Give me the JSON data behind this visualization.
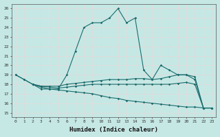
{
  "xlabel": "Humidex (Indice chaleur)",
  "ylabel": "",
  "xlim": [
    -0.5,
    23.5
  ],
  "ylim": [
    14.5,
    26.5
  ],
  "yticks": [
    15,
    16,
    17,
    18,
    19,
    20,
    21,
    22,
    23,
    24,
    25,
    26
  ],
  "xticks": [
    0,
    1,
    2,
    3,
    4,
    5,
    6,
    7,
    8,
    9,
    10,
    11,
    12,
    13,
    14,
    15,
    16,
    17,
    18,
    19,
    20,
    21,
    22,
    23
  ],
  "background_color": "#c5e8e5",
  "grid_color": "#e8d8d8",
  "line_color": "#1a6b6b",
  "lines": [
    {
      "x": [
        0,
        1,
        2,
        3,
        4,
        5,
        6,
        7,
        8,
        9,
        10,
        11,
        12,
        13,
        14,
        15,
        16,
        17,
        18,
        19,
        20,
        21,
        22,
        23
      ],
      "y": [
        19,
        18.5,
        18,
        17.5,
        17.5,
        17.5,
        19,
        21.5,
        24,
        24.5,
        24.5,
        25,
        26,
        24.5,
        25,
        19.5,
        18.5,
        20,
        19.5,
        19,
        19,
        18.5,
        15.5,
        15.5
      ]
    },
    {
      "x": [
        0,
        1,
        2,
        3,
        4,
        5,
        6,
        7,
        8,
        9,
        10,
        11,
        12,
        13,
        14,
        15,
        16,
        17,
        18,
        19,
        20,
        21,
        22,
        23
      ],
      "y": [
        19,
        18.5,
        18,
        17.8,
        17.8,
        17.8,
        18.0,
        18.1,
        18.2,
        18.3,
        18.4,
        18.5,
        18.5,
        18.5,
        18.6,
        18.6,
        18.5,
        18.6,
        18.8,
        19.0,
        19.0,
        18.8,
        15.5,
        15.5
      ]
    },
    {
      "x": [
        2,
        3,
        4,
        5,
        6,
        7,
        8,
        9,
        10,
        11,
        12,
        13,
        14,
        15,
        16,
        17,
        18,
        19,
        20,
        21,
        22,
        23
      ],
      "y": [
        18.0,
        17.8,
        17.7,
        17.6,
        17.7,
        17.8,
        17.9,
        18.0,
        18.0,
        18.0,
        18.0,
        18.0,
        18.0,
        18.0,
        18.0,
        18.0,
        18.0,
        18.1,
        18.2,
        18.0,
        15.5,
        15.5
      ]
    },
    {
      "x": [
        2,
        3,
        4,
        5,
        6,
        7,
        8,
        9,
        10,
        11,
        12,
        13,
        14,
        15,
        16,
        17,
        18,
        19,
        20,
        21,
        22,
        23
      ],
      "y": [
        18.0,
        17.7,
        17.5,
        17.4,
        17.3,
        17.2,
        17.1,
        17.0,
        16.8,
        16.6,
        16.5,
        16.3,
        16.2,
        16.1,
        16.0,
        15.9,
        15.8,
        15.7,
        15.6,
        15.6,
        15.5,
        15.5
      ]
    }
  ]
}
